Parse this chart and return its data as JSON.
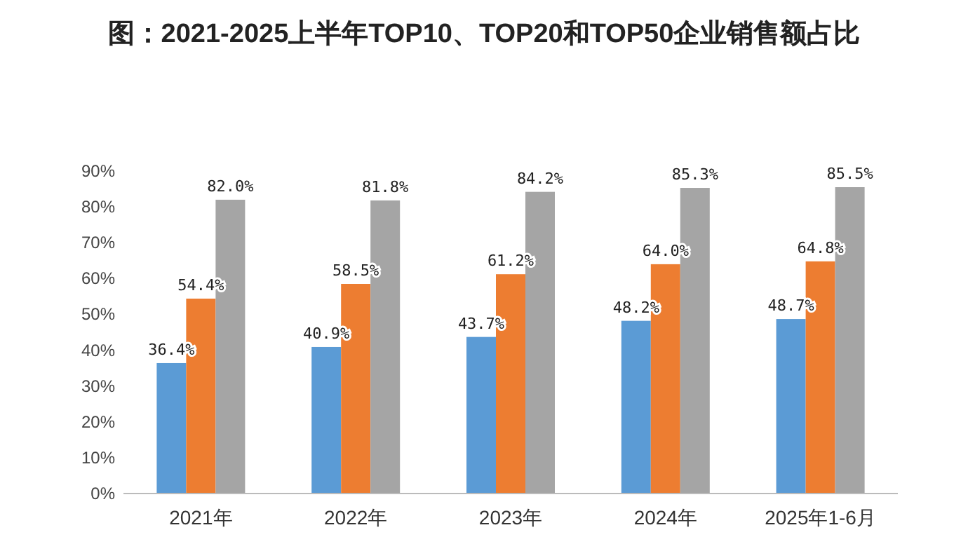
{
  "chart_data": {
    "type": "bar",
    "title": "图：2021-2025上半年TOP10、TOP20和TOP50企业销售额占比",
    "categories": [
      "2021年",
      "2022年",
      "2023年",
      "2024年",
      "2025年1-6月"
    ],
    "series": [
      {
        "color": "#5b9bd5",
        "values": [
          36.4,
          40.9,
          43.7,
          48.2,
          48.7
        ],
        "value_labels": [
          "36.4%",
          "40.9%",
          "43.7%",
          "48.2%",
          "48.7%"
        ]
      },
      {
        "color": "#ed7d31",
        "values": [
          54.4,
          58.5,
          61.2,
          64.0,
          64.8
        ],
        "value_labels": [
          "54.4%",
          "58.5%",
          "61.2%",
          "64.0%",
          "64.8%"
        ]
      },
      {
        "color": "#a5a5a5",
        "values": [
          82.0,
          81.8,
          84.2,
          85.3,
          85.5
        ],
        "value_labels": [
          "82.0%",
          "81.8%",
          "84.2%",
          "85.3%",
          "85.5%"
        ]
      }
    ],
    "ylim": [
      0,
      90
    ],
    "yticks": [
      {
        "value": 0,
        "label": "0%"
      },
      {
        "value": 10,
        "label": "10%"
      },
      {
        "value": 20,
        "label": "20%"
      },
      {
        "value": 30,
        "label": "30%"
      },
      {
        "value": 40,
        "label": "40%"
      },
      {
        "value": 50,
        "label": "50%"
      },
      {
        "value": 60,
        "label": "60%"
      },
      {
        "value": 70,
        "label": "70%"
      },
      {
        "value": 80,
        "label": "80%"
      },
      {
        "value": 90,
        "label": "90%"
      }
    ],
    "grid": false
  }
}
